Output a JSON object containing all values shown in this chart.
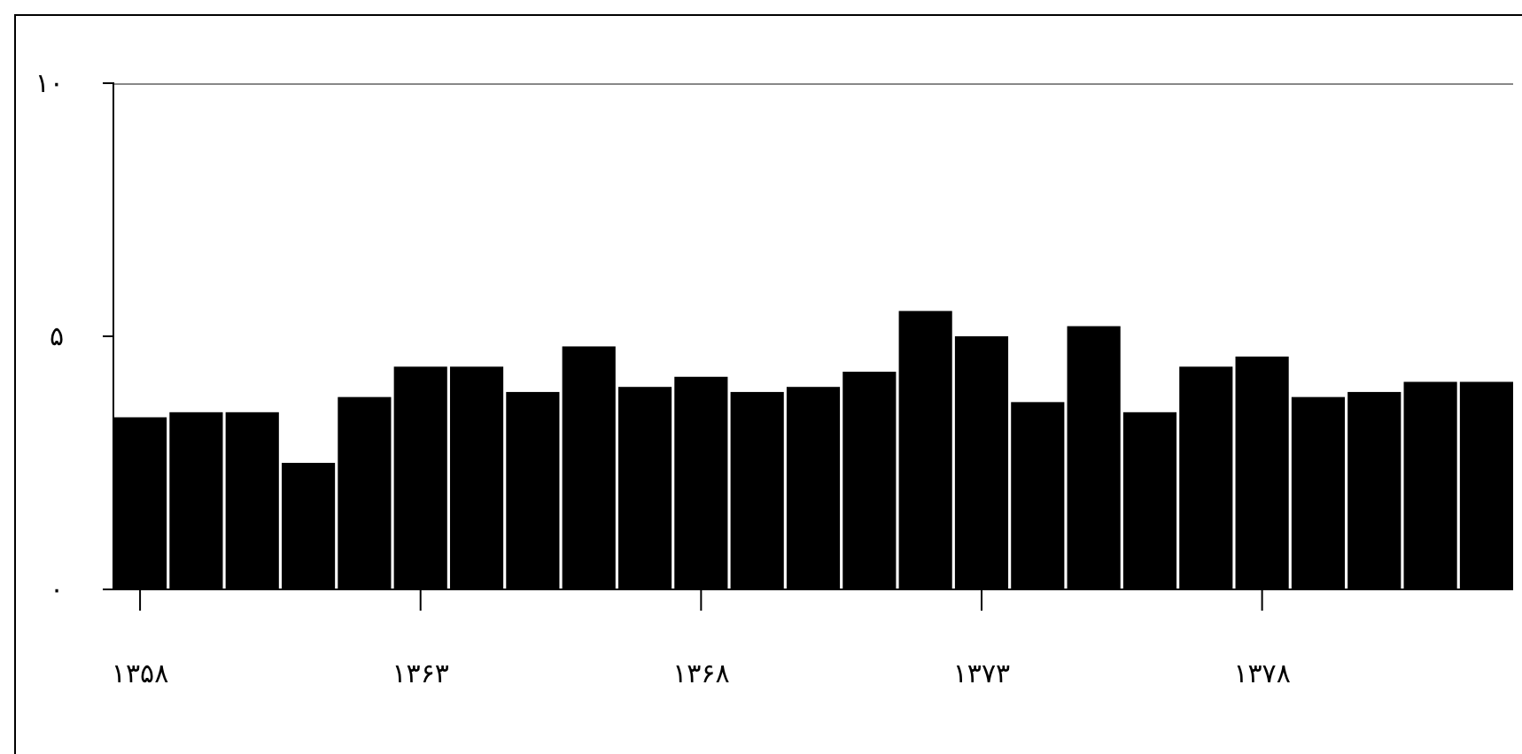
{
  "chart_data": {
    "type": "bar",
    "categories": [
      "۱۳۵۸",
      null,
      null,
      null,
      null,
      "۱۳۶۳",
      null,
      null,
      null,
      null,
      "۱۳۶۸",
      null,
      null,
      null,
      null,
      "۱۳۷۳",
      null,
      null,
      null,
      null,
      "۱۳۷۸",
      null,
      null,
      null,
      null
    ],
    "values": [
      3.4,
      3.5,
      3.5,
      2.5,
      3.8,
      4.4,
      4.4,
      3.9,
      4.8,
      4.0,
      4.2,
      3.9,
      4.0,
      4.3,
      5.5,
      5.0,
      3.7,
      5.2,
      3.5,
      4.4,
      4.6,
      3.8,
      3.9,
      4.1,
      4.1
    ],
    "color": "#000000",
    "ylim": [
      0,
      10
    ],
    "yticks": [
      {
        "value": 0,
        "label": "۰"
      },
      {
        "value": 5,
        "label": "۵"
      },
      {
        "value": 10,
        "label": "۱۰"
      }
    ],
    "grid": false
  }
}
